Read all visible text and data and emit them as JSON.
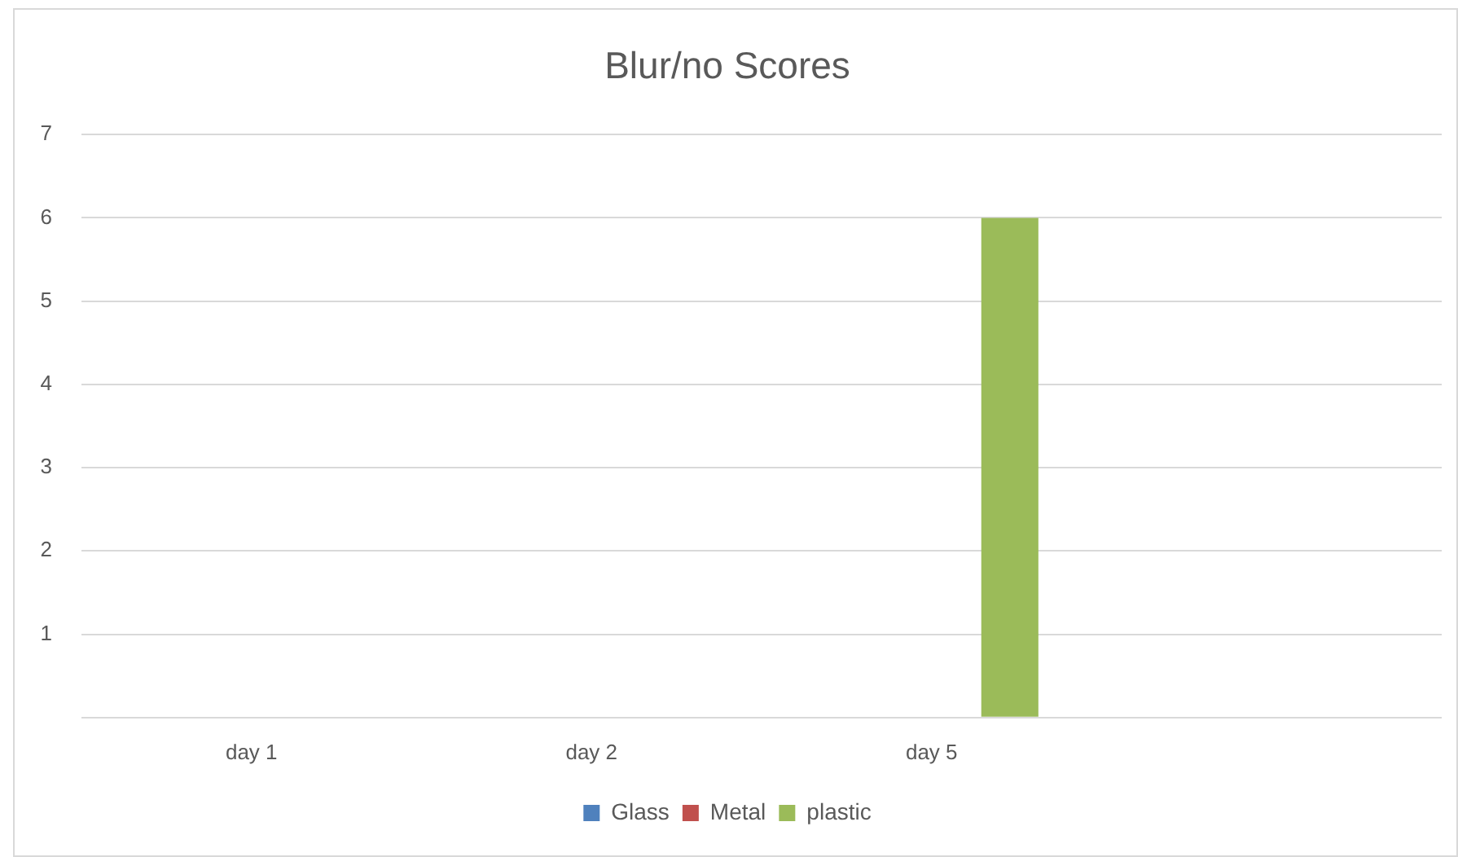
{
  "chart_data": {
    "type": "bar",
    "title": "Blur/no Scores",
    "categories": [
      "day 1",
      "day 2",
      "day 5",
      null
    ],
    "series": [
      {
        "name": "Glass",
        "color": "#4f81bd",
        "values": [
          null,
          null,
          null,
          null
        ]
      },
      {
        "name": "Metal",
        "color": "#c0504d",
        "values": [
          null,
          null,
          null,
          null
        ]
      },
      {
        "name": "plastic",
        "color": "#9bbb59",
        "values": [
          null,
          null,
          6,
          null
        ]
      }
    ],
    "ylim": [
      0,
      7
    ],
    "yticks": [
      {
        "value": 0,
        "label": null
      },
      1,
      2,
      3,
      4,
      5,
      6,
      7
    ],
    "grid": "y",
    "legend": "bottom"
  }
}
